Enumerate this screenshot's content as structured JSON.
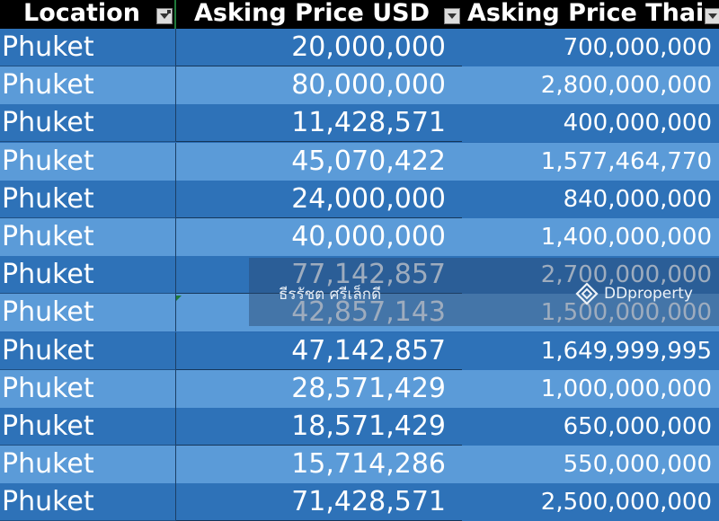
{
  "columns": {
    "location": "Location",
    "usd": "Asking Price USD",
    "thb": "Asking Price Thai"
  },
  "rows": [
    {
      "location": "Phuket",
      "usd": "20,000,000",
      "thb": "700,000,000"
    },
    {
      "location": "Phuket",
      "usd": "80,000,000",
      "thb": "2,800,000,000"
    },
    {
      "location": "Phuket",
      "usd": "11,428,571",
      "thb": "400,000,000"
    },
    {
      "location": "Phuket",
      "usd": "45,070,422",
      "thb": "1,577,464,770"
    },
    {
      "location": "Phuket",
      "usd": "24,000,000",
      "thb": "840,000,000"
    },
    {
      "location": "Phuket",
      "usd": "40,000,000",
      "thb": "1,400,000,000"
    },
    {
      "location": "Phuket",
      "usd": "77,142,857",
      "thb": "2,700,000,000"
    },
    {
      "location": "Phuket",
      "usd": "42,857,143",
      "thb": "1,500,000,000"
    },
    {
      "location": "Phuket",
      "usd": "47,142,857",
      "thb": "1,649,999,995"
    },
    {
      "location": "Phuket",
      "usd": "28,571,429",
      "thb": "1,000,000,000"
    },
    {
      "location": "Phuket",
      "usd": "18,571,429",
      "thb": "650,000,000"
    },
    {
      "location": "Phuket",
      "usd": "15,714,286",
      "thb": "550,000,000"
    },
    {
      "location": "Phuket",
      "usd": "71,428,571",
      "thb": "2,500,000,000"
    }
  ],
  "watermark": {
    "name": "ธีรรัชต ศรีเล็กดี",
    "brand": "DDproperty"
  },
  "colors": {
    "header_bg": "#000000",
    "row_dark": "#2e72b8",
    "row_light": "#5b9bd8",
    "selection_green": "#1f7a3a"
  }
}
